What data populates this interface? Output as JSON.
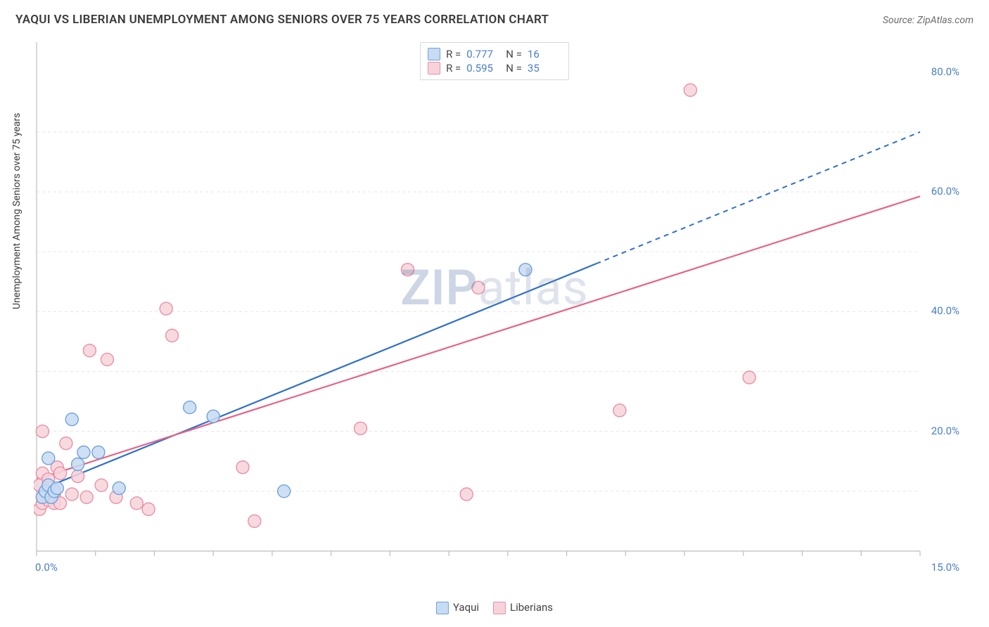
{
  "header": {
    "title": "YAQUI VS LIBERIAN UNEMPLOYMENT AMONG SENIORS OVER 75 YEARS CORRELATION CHART",
    "source_prefix": "Source: ",
    "source_name": "ZipAtlas.com"
  },
  "ylabel": "Unemployment Among Seniors over 75 years",
  "watermark_a": "ZIP",
  "watermark_b": "atlas",
  "chart": {
    "type": "scatter",
    "background_color": "#ffffff",
    "grid_color": "#e6e6e6",
    "axis_line_color": "#bdbdbd",
    "tick_color": "#bdbdbd",
    "x": {
      "min": 0.0,
      "max": 15.0,
      "label_min": "0.0%",
      "label_max": "15.0%",
      "ticks_at": [
        0,
        1,
        2,
        3,
        4,
        5,
        6,
        7,
        8,
        9,
        10,
        11,
        12,
        13,
        14,
        15
      ]
    },
    "y": {
      "min": 0.0,
      "max": 85.0,
      "labels": [
        {
          "v": 20,
          "t": "20.0%"
        },
        {
          "v": 40,
          "t": "40.0%"
        },
        {
          "v": 60,
          "t": "60.0%"
        },
        {
          "v": 80,
          "t": "80.0%"
        }
      ],
      "gridlines": [
        10,
        20,
        30,
        40,
        50,
        60,
        70
      ]
    },
    "marker_radius": 9,
    "marker_stroke_width": 1.4,
    "series": [
      {
        "key": "yaqui",
        "name": "Yaqui",
        "fill": "#c7dbf2",
        "stroke": "#6fa1dd",
        "line": "#2f6fc9",
        "R": "0.777",
        "N": "16",
        "trend": {
          "solid_from_x": 0.0,
          "solid_to_x": 9.5,
          "dash_to_x": 15.0,
          "y_at_x0": 10.0,
          "slope": 4.0
        },
        "points": [
          [
            0.1,
            9
          ],
          [
            0.15,
            10
          ],
          [
            0.2,
            11
          ],
          [
            0.2,
            15.5
          ],
          [
            0.25,
            9
          ],
          [
            0.3,
            10
          ],
          [
            0.35,
            10.5
          ],
          [
            0.6,
            22
          ],
          [
            0.7,
            14.5
          ],
          [
            0.8,
            16.5
          ],
          [
            1.05,
            16.5
          ],
          [
            1.4,
            10.5
          ],
          [
            2.6,
            24
          ],
          [
            3.0,
            22.5
          ],
          [
            4.2,
            10
          ],
          [
            8.3,
            47
          ]
        ]
      },
      {
        "key": "liberians",
        "name": "Liberians",
        "fill": "#f6d3db",
        "stroke": "#ec8fa6",
        "line": "#e56487",
        "R": "0.595",
        "N": "35",
        "trend": {
          "solid_from_x": 0.0,
          "solid_to_x": 15.0,
          "dash_to_x": 15.0,
          "y_at_x0": 12.0,
          "slope": 3.15
        },
        "points": [
          [
            0.05,
            7
          ],
          [
            0.05,
            11
          ],
          [
            0.1,
            8
          ],
          [
            0.1,
            9
          ],
          [
            0.1,
            13
          ],
          [
            0.1,
            20
          ],
          [
            0.2,
            8.5
          ],
          [
            0.2,
            12
          ],
          [
            0.2,
            10.5
          ],
          [
            0.3,
            9.5
          ],
          [
            0.3,
            8
          ],
          [
            0.35,
            14
          ],
          [
            0.4,
            13
          ],
          [
            0.4,
            8
          ],
          [
            0.5,
            18
          ],
          [
            0.6,
            9.5
          ],
          [
            0.7,
            12.5
          ],
          [
            0.85,
            9
          ],
          [
            0.9,
            33.5
          ],
          [
            1.1,
            11
          ],
          [
            1.2,
            32
          ],
          [
            1.35,
            9
          ],
          [
            1.7,
            8
          ],
          [
            1.9,
            7
          ],
          [
            2.2,
            40.5
          ],
          [
            2.3,
            36
          ],
          [
            3.5,
            14
          ],
          [
            3.7,
            5
          ],
          [
            5.5,
            20.5
          ],
          [
            6.3,
            47
          ],
          [
            7.3,
            9.5
          ],
          [
            7.5,
            44
          ],
          [
            9.9,
            23.5
          ],
          [
            11.1,
            77
          ],
          [
            12.1,
            29
          ]
        ]
      }
    ]
  },
  "legend_bottom": [
    {
      "key": "yaqui"
    },
    {
      "key": "liberians"
    }
  ]
}
